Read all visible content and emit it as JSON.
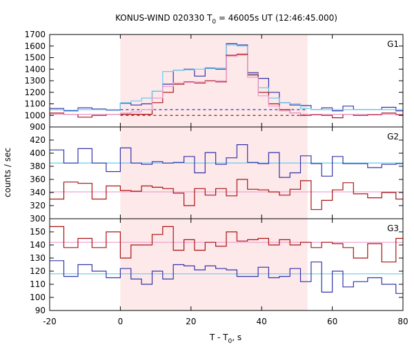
{
  "chart_data": {
    "type": "line",
    "title": "KONUS-WIND 020330 T",
    "title_sub": "0",
    "title_rest": " = 46005s UT (12:46:45.000)",
    "xlabel": "T - T",
    "xlabel_sub": "0",
    "xlabel_rest": ", s",
    "ylabel": "counts / sec",
    "xlim": [
      -20,
      80
    ],
    "x_ticks": [
      -20,
      0,
      20,
      40,
      60,
      80
    ],
    "shaded_interval": [
      0,
      53
    ],
    "shade_color": "#fde8ea",
    "panels": [
      {
        "label": "G1",
        "ylim": [
          900,
          1700
        ],
        "y_ticks": [
          900,
          1000,
          1100,
          1200,
          1300,
          1400,
          1500,
          1600,
          1700
        ],
        "bin_edges": [
          -20,
          -16,
          -12,
          -8,
          -4,
          0,
          3,
          6,
          9,
          12,
          15,
          18,
          21,
          24,
          27,
          30,
          33,
          36,
          39,
          42,
          45,
          48,
          51,
          54,
          57,
          60,
          63,
          66,
          70,
          74,
          78,
          80
        ],
        "series": [
          {
            "color": "#3333aa",
            "values": [
              1060,
              1040,
              1065,
              1055,
              1045,
              1105,
              1090,
              1100,
              1210,
              1270,
              1390,
              1400,
              1340,
              1410,
              1400,
              1620,
              1610,
              1370,
              1320,
              1200,
              1110,
              1090,
              1085,
              1050,
              1065,
              1040,
              1080,
              1050,
              1050,
              1070,
              1040
            ]
          },
          {
            "color": "#66ccee",
            "values": [
              1050,
              1045,
              1050,
              1050,
              1050,
              1110,
              1125,
              1150,
              1210,
              1380,
              1390,
              1395,
              1400,
              1405,
              1410,
              1610,
              1600,
              1360,
              1240,
              1150,
              1110,
              1100,
              1060,
              1050,
              1050,
              1050,
              1050,
              1050,
              1050,
              1050,
              1050
            ]
          },
          {
            "color": "#aa1111",
            "values": [
              1020,
              1010,
              985,
              1000,
              1010,
              1010,
              1010,
              1010,
              1110,
              1200,
              1270,
              1290,
              1280,
              1300,
              1290,
              1520,
              1530,
              1350,
              1200,
              1100,
              1050,
              1020,
              1000,
              1005,
              1000,
              980,
              1010,
              1000,
              1005,
              1020,
              1005
            ]
          },
          {
            "color": "#ee99cc",
            "values": [
              1010,
              1010,
              1010,
              1010,
              1010,
              1020,
              1030,
              1050,
              1150,
              1250,
              1280,
              1285,
              1290,
              1295,
              1300,
              1510,
              1520,
              1330,
              1170,
              1080,
              1040,
              1020,
              1010,
              1010,
              1010,
              1010,
              1010,
              1010,
              1010,
              1010,
              1010
            ]
          }
        ],
        "background_lines": [
          {
            "color": "#3333aa",
            "y": 1050,
            "x_range": [
              0,
              53
            ]
          },
          {
            "color": "#aa1111",
            "y": 1000,
            "x_range": [
              0,
              53
            ]
          }
        ]
      },
      {
        "label": "G2",
        "ylim": [
          300,
          440
        ],
        "y_ticks": [
          300,
          320,
          340,
          360,
          380,
          400,
          420
        ],
        "bin_edges": [
          -20,
          -16,
          -12,
          -8,
          -4,
          0,
          3,
          6,
          9,
          12,
          15,
          18,
          21,
          24,
          27,
          30,
          33,
          36,
          39,
          42,
          45,
          48,
          51,
          54,
          57,
          60,
          63,
          66,
          70,
          74,
          78,
          80
        ],
        "series": [
          {
            "color": "#3333aa",
            "values": [
              405,
              385,
              407,
              385,
              372,
              408,
              385,
              383,
              387,
              385,
              386,
              395,
              370,
              401,
              383,
              393,
              413,
              386,
              384,
              401,
              363,
              370,
              396,
              384,
              365,
              395,
              384,
              384,
              378,
              383,
              384
            ]
          },
          {
            "color": "#aa1111",
            "values": [
              330,
              356,
              354,
              330,
              350,
              343,
              342,
              350,
              348,
              346,
              339,
              320,
              346,
              336,
              346,
              335,
              360,
              345,
              344,
              341,
              336,
              345,
              358,
              314,
              328,
              344,
              355,
              338,
              332,
              340,
              330
            ]
          }
        ],
        "background_lines": [
          {
            "color": "#66ccee",
            "y": 385
          },
          {
            "color": "#ee99cc",
            "y": 341
          }
        ]
      },
      {
        "label": "G3",
        "ylim": [
          90,
          160
        ],
        "y_ticks": [
          90,
          100,
          110,
          120,
          130,
          140,
          150
        ],
        "bin_edges": [
          -20,
          -16,
          -12,
          -8,
          -4,
          0,
          3,
          6,
          9,
          12,
          15,
          18,
          21,
          24,
          27,
          30,
          33,
          36,
          39,
          42,
          45,
          48,
          51,
          54,
          57,
          60,
          63,
          66,
          70,
          74,
          78,
          80
        ],
        "series": [
          {
            "color": "#aa1111",
            "values": [
              154,
              138,
              145,
              138,
              150,
              130,
              140,
              140,
              148,
              154,
              136,
              144,
              136,
              142,
              139,
              150,
              143,
              144,
              145,
              140,
              144,
              140,
              142,
              138,
              142,
              141,
              138,
              130,
              141,
              127,
              145
            ]
          },
          {
            "color": "#3333aa",
            "values": [
              128,
              116,
              125,
              120,
              115,
              122,
              114,
              110,
              120,
              114,
              125,
              124,
              121,
              124,
              122,
              121,
              116,
              116,
              123,
              115,
              116,
              122,
              112,
              127,
              104,
              120,
              108,
              112,
              115,
              110,
              103
            ]
          }
        ],
        "background_lines": [
          {
            "color": "#ee99cc",
            "y": 142
          },
          {
            "color": "#66ccee",
            "y": 118
          }
        ]
      }
    ]
  }
}
